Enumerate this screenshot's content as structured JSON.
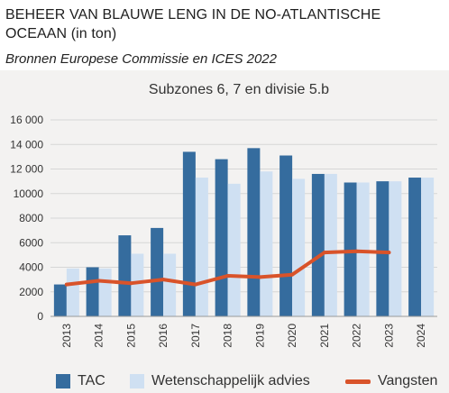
{
  "header": {
    "title": "BEHEER VAN BLAUWE LENG IN DE NO-ATLANTISCHE OCEAAN  (in ton)",
    "subtitle": "Bronnen Europese Commissie en ICES 2022"
  },
  "colors": {
    "tac": "#356c9e",
    "advies": "#cfe0f2",
    "vangsten": "#d9532a",
    "grid": "#d6d6d6",
    "background": "#f3f2f1"
  },
  "chart_data": {
    "type": "bar",
    "title": "Subzones 6, 7 en divisie 5.b",
    "xlabel": "",
    "ylabel": "",
    "ylim": [
      0,
      16000
    ],
    "yticks": [
      "0",
      "2000",
      "4000",
      "6000",
      "8000",
      "10000",
      "12 000",
      "14 000",
      "16 000"
    ],
    "ytick_values": [
      0,
      2000,
      4000,
      6000,
      8000,
      10000,
      12000,
      14000,
      16000
    ],
    "grid": true,
    "legend_position": "bottom",
    "categories": [
      "2013",
      "2014",
      "2015",
      "2016",
      "2017",
      "2018",
      "2019",
      "2020",
      "2021",
      "2022",
      "2023",
      "2024"
    ],
    "series": [
      {
        "name": "TAC",
        "kind": "bar",
        "values": [
          2600,
          4000,
          6600,
          7200,
          13400,
          12800,
          13700,
          13100,
          11600,
          10900,
          11000,
          11300
        ]
      },
      {
        "name": "Wetenschappelijk advies",
        "kind": "bar",
        "values": [
          3900,
          3900,
          5100,
          5100,
          11300,
          10800,
          11800,
          11200,
          11600,
          10900,
          11000,
          11300
        ]
      },
      {
        "name": "Vangsten",
        "kind": "line",
        "values": [
          2600,
          2900,
          2700,
          3000,
          2600,
          3300,
          3200,
          3400,
          5200,
          5300,
          5200,
          null
        ]
      }
    ]
  }
}
